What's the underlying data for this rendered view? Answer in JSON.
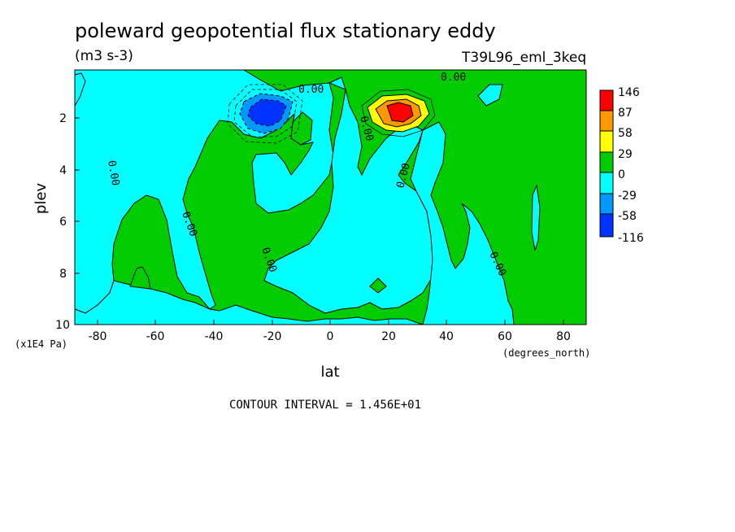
{
  "chart_data": {
    "type": "heatmap",
    "title": "poleward geopotential flux stationary eddy",
    "units": "(m3 s-3)",
    "experiment": "T39L96_eml_3keq",
    "xlabel": "lat",
    "xunits": "(degrees_north)",
    "ylabel": "plev",
    "yunits": "(x1E4 Pa)",
    "xlim": [
      -90,
      90
    ],
    "ylim": [
      10,
      0
    ],
    "x_ticks": [
      "-80",
      "-60",
      "-40",
      "-20",
      "0",
      "20",
      "40",
      "60",
      "80"
    ],
    "y_ticks": [
      "2",
      "4",
      "6",
      "8",
      "10"
    ],
    "contour_interval": "CONTOUR INTERVAL = 1.456E+01",
    "contour_labels": [
      "0.00",
      "0.00",
      "0.00",
      "0.00",
      "0.00",
      "0.00",
      "0.00",
      "0.00"
    ],
    "colorbar": {
      "levels": [
        "146",
        "87",
        "58",
        "29",
        "0",
        "-29",
        "-58",
        "-116"
      ],
      "colors": [
        "#ff0000",
        "#ff9900",
        "#ffff00",
        "#00cc00",
        "#00ffff",
        "#0099ff",
        "#0033ff"
      ]
    },
    "features": [
      {
        "label": "positive maximum",
        "lat": 22,
        "plev": 1.7,
        "value": 146
      },
      {
        "label": "negative minimum",
        "lat": -23,
        "plev": 1.9,
        "value": -116
      }
    ]
  }
}
